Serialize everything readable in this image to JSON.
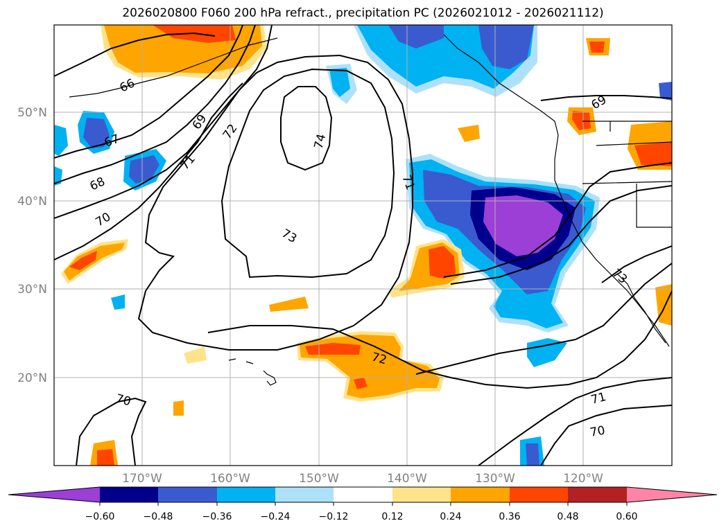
{
  "title": "2026020800 F060 200 hPa refract., precipitation PC (2026021012 - 2026021112)",
  "map": {
    "lat_labels": [
      "50°N",
      "40°N",
      "30°N",
      "20°N"
    ],
    "lon_labels": [
      "170°W",
      "160°W",
      "150°W",
      "140°W",
      "130°W",
      "120°W"
    ],
    "contour_labels": [
      "66",
      "67",
      "68",
      "69",
      "70",
      "71",
      "72",
      "73",
      "74",
      "71",
      "72",
      "73",
      "69",
      "70",
      "71",
      "70"
    ],
    "grid": true
  },
  "colorbar": {
    "tick_labels": [
      "−0.60",
      "−0.48",
      "−0.36",
      "−0.24",
      "−0.12",
      "0.12",
      "0.24",
      "0.36",
      "0.48",
      "0.60"
    ],
    "colors": [
      "#9b3fd6",
      "#00008c",
      "#3a5bd0",
      "#00b2f2",
      "#ade1fa",
      "#ffffff",
      "#ffe38a",
      "#ffa500",
      "#ff4500",
      "#b22222",
      "#ff85a8"
    ]
  }
}
